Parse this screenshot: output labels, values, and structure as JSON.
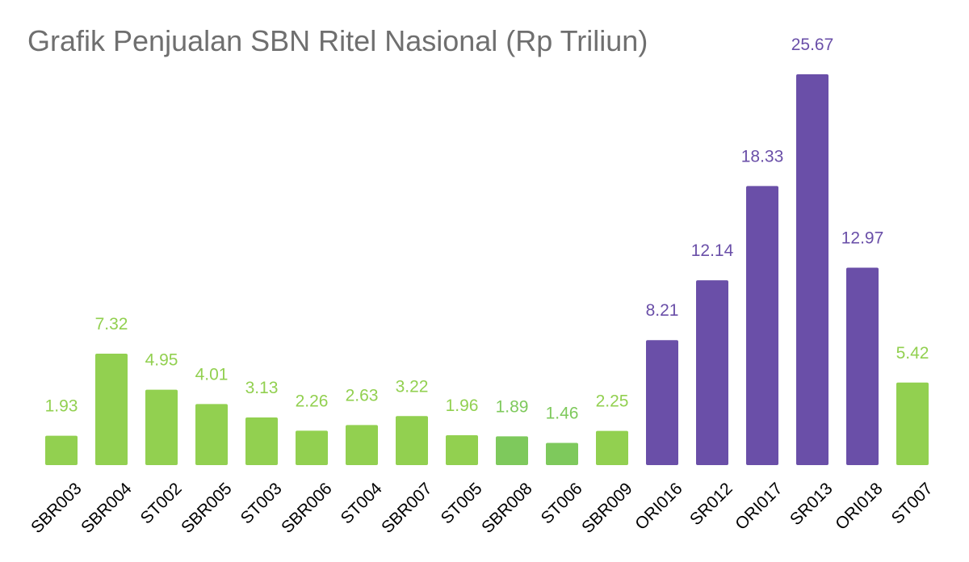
{
  "chart_data": {
    "type": "bar",
    "title": "Grafik Penjualan SBN Ritel Nasional (Rp Triliun)",
    "xlabel": "",
    "ylabel": "",
    "ylim": [
      0,
      25.67
    ],
    "grid": false,
    "legend": "none",
    "colors": {
      "green": "#92d050",
      "green_alt": "#7ec95c",
      "purple": "#6a4fa8"
    },
    "categories": [
      "SBR003",
      "SBR004",
      "ST002",
      "SBR005",
      "ST003",
      "SBR006",
      "ST004",
      "SBR007",
      "ST005",
      "SBR008",
      "ST006",
      "SBR009",
      "ORI016",
      "SR012",
      "ORI017",
      "SR013",
      "ORI018",
      "ST007"
    ],
    "values": [
      1.93,
      7.32,
      4.95,
      4.01,
      3.13,
      2.26,
      2.63,
      3.22,
      1.96,
      1.89,
      1.46,
      2.25,
      8.21,
      12.14,
      18.33,
      25.67,
      12.97,
      5.42
    ],
    "value_labels": [
      "1.93",
      "7.32",
      "4.95",
      "4.01",
      "3.13",
      "2.26",
      "2.63",
      "3.22",
      "1.96",
      "1.89",
      "1.46",
      "2.25",
      "8.21",
      "12.14",
      "18.33",
      "25.67",
      "12.97",
      "5.42"
    ],
    "bar_colors": [
      "green",
      "green",
      "green",
      "green",
      "green",
      "green",
      "green",
      "green",
      "green",
      "green_alt",
      "green_alt",
      "green",
      "purple",
      "purple",
      "purple",
      "purple",
      "purple",
      "green"
    ]
  }
}
